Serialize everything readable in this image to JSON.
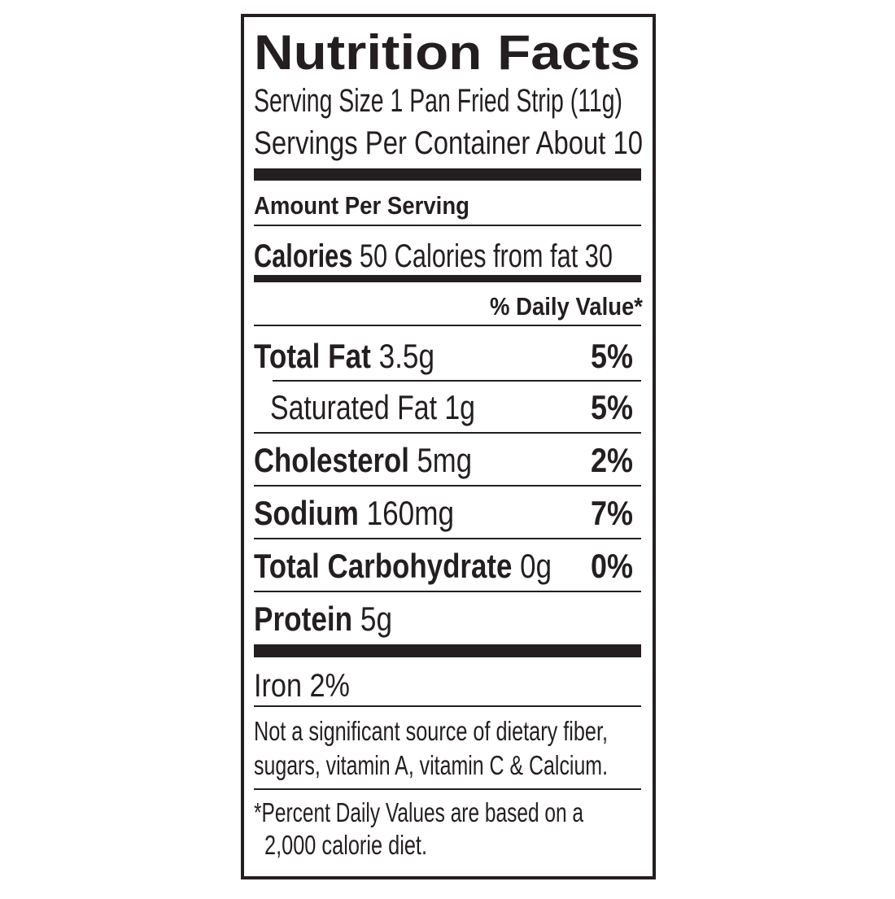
{
  "header": {
    "title": "Nutrition Facts",
    "serving_size": "Serving Size 1 Pan Fried Strip (11g)",
    "servings_per_container": "Servings Per Container About 10"
  },
  "amount_per_serving": "Amount Per Serving",
  "calories": {
    "label": "Calories",
    "value": "50",
    "from_fat": "Calories from fat 30"
  },
  "daily_value_header": "% Daily Value*",
  "nutrients": [
    {
      "name": "Total Fat",
      "amount": "3.5g",
      "dv": "5%"
    },
    {
      "name": "Saturated Fat",
      "amount": "1g",
      "dv": "5%"
    },
    {
      "name": "Cholesterol",
      "amount": "5mg",
      "dv": "2%"
    },
    {
      "name": "Sodium",
      "amount": "160mg",
      "dv": "7%"
    },
    {
      "name": "Total Carbohydrate",
      "amount": "0g",
      "dv": "0%"
    },
    {
      "name": "Protein",
      "amount": "5g"
    }
  ],
  "vitamins": [
    "Iron 2%"
  ],
  "note": [
    "Not a significant source of dietary fiber,",
    "sugars, vitamin A, vitamin C & Calcium."
  ],
  "footnote": [
    "*Percent Daily Values are based on a",
    "2,000 calorie diet."
  ]
}
